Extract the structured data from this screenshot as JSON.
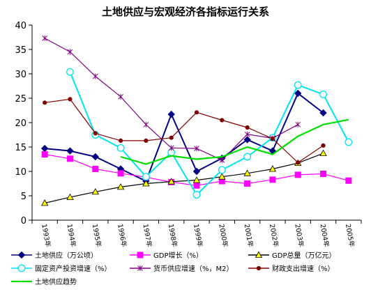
{
  "chart_data": {
    "type": "line",
    "title": "土地供应与宏观经济各指标运行关系",
    "categories": [
      "1993年",
      "1994年",
      "1995年",
      "1996年",
      "1997年",
      "1998年",
      "1999年",
      "2000年",
      "2001年",
      "2002年",
      "2003年",
      "2004年",
      "2005年"
    ],
    "ylim": [
      0,
      40
    ],
    "yticks": [
      0,
      5,
      10,
      15,
      20,
      25,
      30,
      35,
      40
    ],
    "grid": false,
    "legend_position": "bottom",
    "series": [
      {
        "name": "土地供应（万公顷）",
        "color": "#000080",
        "marker": "diamond",
        "values": [
          14.7,
          14.2,
          13.0,
          10.5,
          8.0,
          21.7,
          10.0,
          12.7,
          16.5,
          14.2,
          26.0,
          22.0,
          null
        ]
      },
      {
        "name": "GDP增长（%）",
        "color": "#ff00ff",
        "marker": "square",
        "values": [
          13.5,
          12.6,
          10.5,
          9.6,
          8.8,
          7.8,
          7.1,
          8.0,
          7.5,
          8.3,
          9.3,
          9.5,
          8.1
        ]
      },
      {
        "name": "GDP总量（万亿元）",
        "color": "#000000",
        "marker": "triangle",
        "values": [
          3.5,
          4.7,
          5.8,
          6.8,
          7.5,
          7.9,
          8.2,
          8.9,
          9.6,
          10.5,
          11.7,
          13.7,
          null
        ]
      },
      {
        "name": "固定资产投资增速（%）",
        "color": "#00e5ee",
        "marker": "circle",
        "values": [
          null,
          30.4,
          17.5,
          14.8,
          8.9,
          13.9,
          5.2,
          10.3,
          13.0,
          16.9,
          27.7,
          25.8,
          16.0
        ]
      },
      {
        "name": "货币供应增速（%，M2）",
        "color": "#800080",
        "marker": "star",
        "values": [
          37.3,
          34.5,
          29.5,
          25.3,
          19.6,
          14.8,
          14.7,
          12.3,
          17.6,
          16.8,
          19.6,
          null,
          null
        ]
      },
      {
        "name": "财政支出增速（%）",
        "color": "#800000",
        "marker": "dot",
        "values": [
          24.1,
          24.8,
          17.8,
          16.3,
          16.3,
          16.9,
          22.1,
          20.5,
          19.0,
          16.7,
          11.8,
          15.3,
          null
        ]
      },
      {
        "name": "土地供应趋势",
        "color": "#00e000",
        "marker": "none",
        "values": [
          null,
          null,
          null,
          13.0,
          11.5,
          13.2,
          12.5,
          13.0,
          15.0,
          13.5,
          17.2,
          19.6,
          20.6
        ]
      }
    ]
  }
}
